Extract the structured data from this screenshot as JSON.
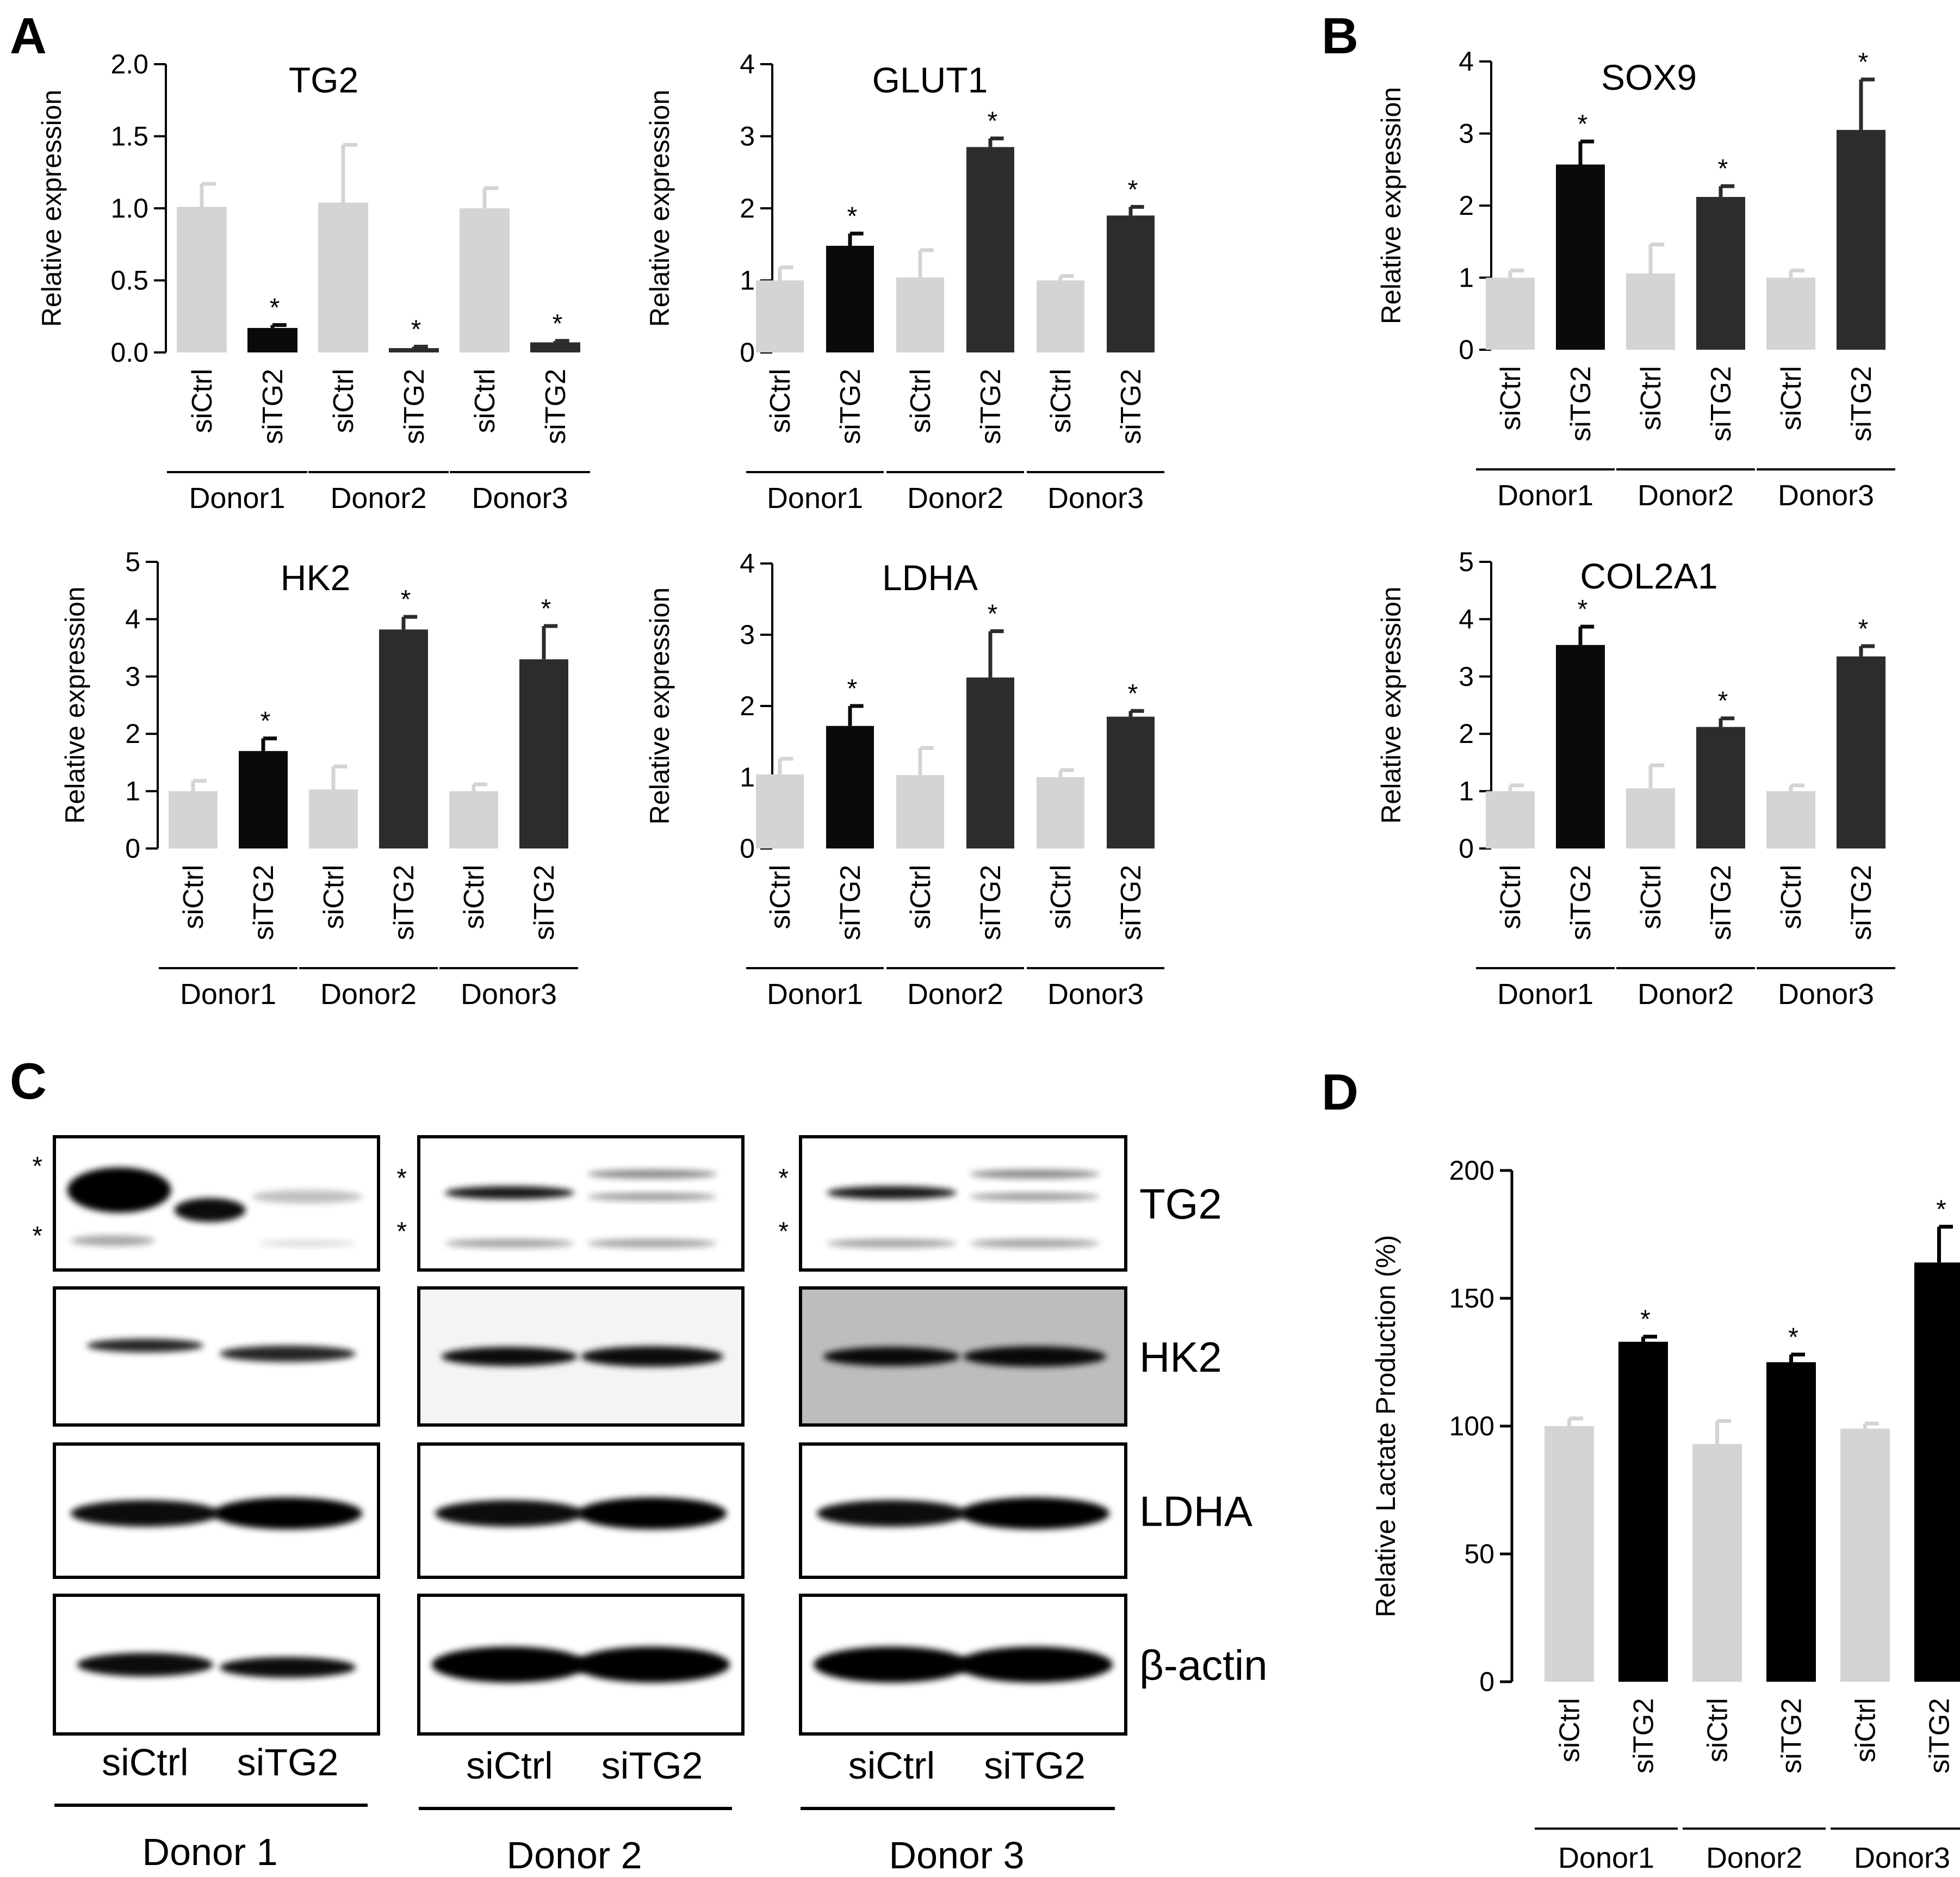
{
  "panels": {
    "A": "A",
    "B": "B",
    "C": "C",
    "D": "D"
  },
  "chart_data": [
    {
      "panel": "A",
      "type": "bar",
      "title": "TG2",
      "ylabel": "Relative expression",
      "ylim": [
        0,
        2.0
      ],
      "yticks": [
        "0.0",
        "0.5",
        "1.0",
        "1.5",
        "2.0"
      ],
      "categories": [
        "siCtrl",
        "siTG2",
        "siCtrl",
        "siTG2",
        "siCtrl",
        "siTG2"
      ],
      "groups": [
        "Donor1",
        "Donor2",
        "Donor3"
      ],
      "values": [
        1.01,
        0.17,
        1.04,
        0.03,
        1.0,
        0.07
      ],
      "errors": [
        0.16,
        0.02,
        0.4,
        0.01,
        0.14,
        0.01
      ],
      "significant": [
        false,
        true,
        false,
        true,
        false,
        true
      ],
      "colors": [
        "#d4d4d4",
        "#0a0a0a",
        "#d4d4d4",
        "#2c2c2c",
        "#d4d4d4",
        "#2c2c2c"
      ]
    },
    {
      "panel": "A",
      "type": "bar",
      "title": "GLUT1",
      "ylabel": "Relative expression",
      "ylim": [
        0,
        4
      ],
      "yticks": [
        "0",
        "1",
        "2",
        "3",
        "4"
      ],
      "categories": [
        "siCtrl",
        "siTG2",
        "siCtrl",
        "siTG2",
        "siCtrl",
        "siTG2"
      ],
      "groups": [
        "Donor1",
        "Donor2",
        "Donor3"
      ],
      "values": [
        1.0,
        1.48,
        1.04,
        2.85,
        1.0,
        1.9
      ],
      "errors": [
        0.18,
        0.17,
        0.38,
        0.12,
        0.06,
        0.12
      ],
      "significant": [
        false,
        true,
        false,
        true,
        false,
        true
      ],
      "colors": [
        "#d4d4d4",
        "#0a0a0a",
        "#d4d4d4",
        "#2c2c2c",
        "#d4d4d4",
        "#2c2c2c"
      ]
    },
    {
      "panel": "B",
      "type": "bar",
      "title": "SOX9",
      "ylabel": "Relative expression",
      "ylim": [
        0,
        4
      ],
      "yticks": [
        "0",
        "1",
        "2",
        "3",
        "4"
      ],
      "categories": [
        "siCtrl",
        "siTG2",
        "siCtrl",
        "siTG2",
        "siCtrl",
        "siTG2"
      ],
      "groups": [
        "Donor1",
        "Donor2",
        "Donor3"
      ],
      "values": [
        1.0,
        2.57,
        1.06,
        2.12,
        1.0,
        3.05
      ],
      "errors": [
        0.1,
        0.32,
        0.4,
        0.15,
        0.1,
        0.7
      ],
      "significant": [
        false,
        true,
        false,
        true,
        false,
        true
      ],
      "colors": [
        "#d4d4d4",
        "#0a0a0a",
        "#d4d4d4",
        "#2c2c2c",
        "#d4d4d4",
        "#2c2c2c"
      ]
    },
    {
      "panel": "A",
      "type": "bar",
      "title": "HK2",
      "ylabel": "Relative expression",
      "ylim": [
        0,
        5
      ],
      "yticks": [
        "0",
        "1",
        "2",
        "3",
        "4",
        "5"
      ],
      "categories": [
        "siCtrl",
        "siTG2",
        "siCtrl",
        "siTG2",
        "siCtrl",
        "siTG2"
      ],
      "groups": [
        "Donor1",
        "Donor2",
        "Donor3"
      ],
      "values": [
        1.0,
        1.7,
        1.03,
        3.82,
        1.0,
        3.3
      ],
      "errors": [
        0.18,
        0.22,
        0.4,
        0.22,
        0.12,
        0.58
      ],
      "significant": [
        false,
        true,
        false,
        true,
        false,
        true
      ],
      "colors": [
        "#d4d4d4",
        "#0a0a0a",
        "#d4d4d4",
        "#2c2c2c",
        "#d4d4d4",
        "#2c2c2c"
      ]
    },
    {
      "panel": "A",
      "type": "bar",
      "title": "LDHA",
      "ylabel": "Relative expression",
      "ylim": [
        0,
        4
      ],
      "yticks": [
        "0",
        "1",
        "2",
        "3",
        "4"
      ],
      "categories": [
        "siCtrl",
        "siTG2",
        "siCtrl",
        "siTG2",
        "siCtrl",
        "siTG2"
      ],
      "groups": [
        "Donor1",
        "Donor2",
        "Donor3"
      ],
      "values": [
        1.04,
        1.72,
        1.03,
        2.4,
        1.0,
        1.85
      ],
      "errors": [
        0.22,
        0.28,
        0.38,
        0.65,
        0.1,
        0.08
      ],
      "significant": [
        false,
        true,
        false,
        true,
        false,
        true
      ],
      "colors": [
        "#d4d4d4",
        "#0a0a0a",
        "#d4d4d4",
        "#2c2c2c",
        "#d4d4d4",
        "#2c2c2c"
      ]
    },
    {
      "panel": "B",
      "type": "bar",
      "title": "COL2A1",
      "ylabel": "Relative expression",
      "ylim": [
        0,
        5
      ],
      "yticks": [
        "0",
        "1",
        "2",
        "3",
        "4",
        "5"
      ],
      "categories": [
        "siCtrl",
        "siTG2",
        "siCtrl",
        "siTG2",
        "siCtrl",
        "siTG2"
      ],
      "groups": [
        "Donor1",
        "Donor2",
        "Donor3"
      ],
      "values": [
        1.0,
        3.55,
        1.05,
        2.12,
        1.0,
        3.35
      ],
      "errors": [
        0.1,
        0.32,
        0.4,
        0.15,
        0.1,
        0.18
      ],
      "significant": [
        false,
        true,
        false,
        true,
        false,
        true
      ],
      "colors": [
        "#d4d4d4",
        "#0a0a0a",
        "#d4d4d4",
        "#2c2c2c",
        "#d4d4d4",
        "#2c2c2c"
      ]
    },
    {
      "panel": "D",
      "type": "bar",
      "title": "",
      "ylabel": "Relative Lactate Production (%)",
      "ylim": [
        0,
        200
      ],
      "yticks": [
        "0",
        "50",
        "100",
        "150",
        "200"
      ],
      "categories": [
        "siCtrl",
        "siTG2",
        "siCtrl",
        "siTG2",
        "siCtrl",
        "siTG2"
      ],
      "groups": [
        "Donor1",
        "Donor2",
        "Donor3"
      ],
      "values": [
        100,
        133,
        93,
        125,
        99,
        164
      ],
      "errors": [
        3,
        2,
        9,
        3,
        2,
        14
      ],
      "significant": [
        false,
        true,
        false,
        true,
        false,
        true
      ],
      "colors": [
        "#d4d4d4",
        "#000000",
        "#d4d4d4",
        "#000000",
        "#d4d4d4",
        "#000000"
      ]
    }
  ],
  "blot": {
    "panel": "C",
    "proteins": [
      "TG2",
      "HK2",
      "LDHA",
      "β-actin"
    ],
    "lanes": [
      "siCtrl",
      "siTG2"
    ],
    "donors": [
      "Donor 1",
      "Donor 2",
      "Donor 3"
    ],
    "star": "*"
  },
  "star_symbol": "*"
}
